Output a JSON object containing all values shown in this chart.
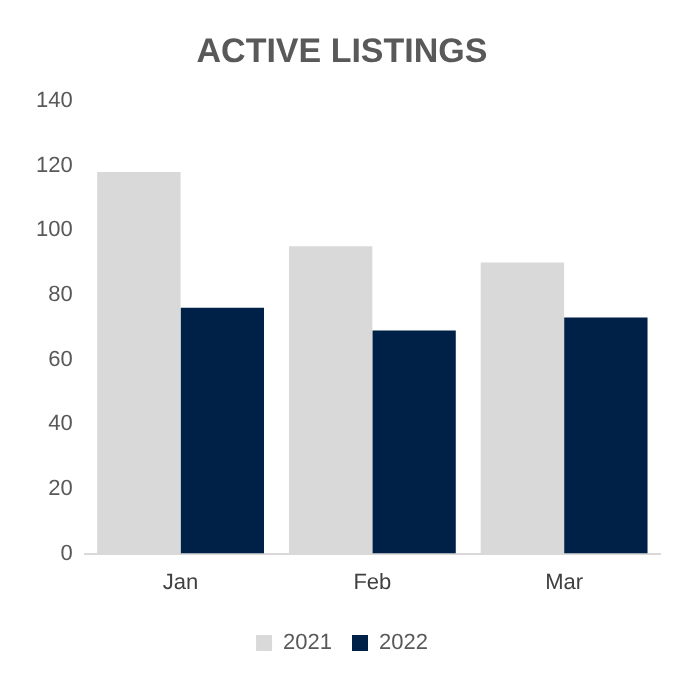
{
  "chart_data": {
    "type": "bar",
    "title": "ACTIVE LISTINGS",
    "categories": [
      "Jan",
      "Feb",
      "Mar"
    ],
    "series": [
      {
        "name": "2021",
        "color": "#d9d9d9",
        "values": [
          118,
          95,
          90
        ]
      },
      {
        "name": "2022",
        "color": "#002147",
        "values": [
          76,
          69,
          73
        ]
      }
    ],
    "ylim": [
      0,
      140
    ],
    "yticks": [
      0,
      20,
      40,
      60,
      80,
      100,
      120,
      140
    ],
    "grid": false,
    "legend": "bottom"
  }
}
